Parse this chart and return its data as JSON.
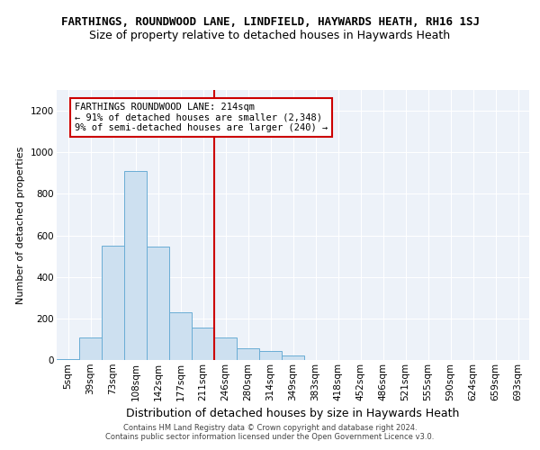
{
  "title": "FARTHINGS, ROUNDWOOD LANE, LINDFIELD, HAYWARDS HEATH, RH16 1SJ",
  "subtitle": "Size of property relative to detached houses in Haywards Heath",
  "xlabel": "Distribution of detached houses by size in Haywards Heath",
  "ylabel": "Number of detached properties",
  "bar_labels": [
    "5sqm",
    "39sqm",
    "73sqm",
    "108sqm",
    "142sqm",
    "177sqm",
    "211sqm",
    "246sqm",
    "280sqm",
    "314sqm",
    "349sqm",
    "383sqm",
    "418sqm",
    "452sqm",
    "486sqm",
    "521sqm",
    "555sqm",
    "590sqm",
    "624sqm",
    "659sqm",
    "693sqm"
  ],
  "bar_values": [
    3,
    110,
    550,
    910,
    545,
    230,
    155,
    110,
    55,
    45,
    20,
    0,
    0,
    0,
    0,
    0,
    0,
    0,
    0,
    0,
    0
  ],
  "bar_color": "#cde0f0",
  "bar_edge_color": "#6aadd5",
  "vline_x_idx": 7,
  "vline_color": "#cc0000",
  "annotation_text": "FARTHINGS ROUNDWOOD LANE: 214sqm\n← 91% of detached houses are smaller (2,348)\n9% of semi-detached houses are larger (240) →",
  "annotation_box_color": "#ffffff",
  "annotation_box_edge_color": "#cc0000",
  "ylim": [
    0,
    1300
  ],
  "yticks": [
    0,
    200,
    400,
    600,
    800,
    1000,
    1200
  ],
  "footer_text": "Contains HM Land Registry data © Crown copyright and database right 2024.\nContains public sector information licensed under the Open Government Licence v3.0.",
  "bg_color": "#edf2f9",
  "grid_color": "#ffffff",
  "title_fontsize": 9,
  "subtitle_fontsize": 9,
  "xlabel_fontsize": 9,
  "ylabel_fontsize": 8,
  "tick_fontsize": 7.5,
  "annotation_fontsize": 7.5,
  "footer_fontsize": 6
}
